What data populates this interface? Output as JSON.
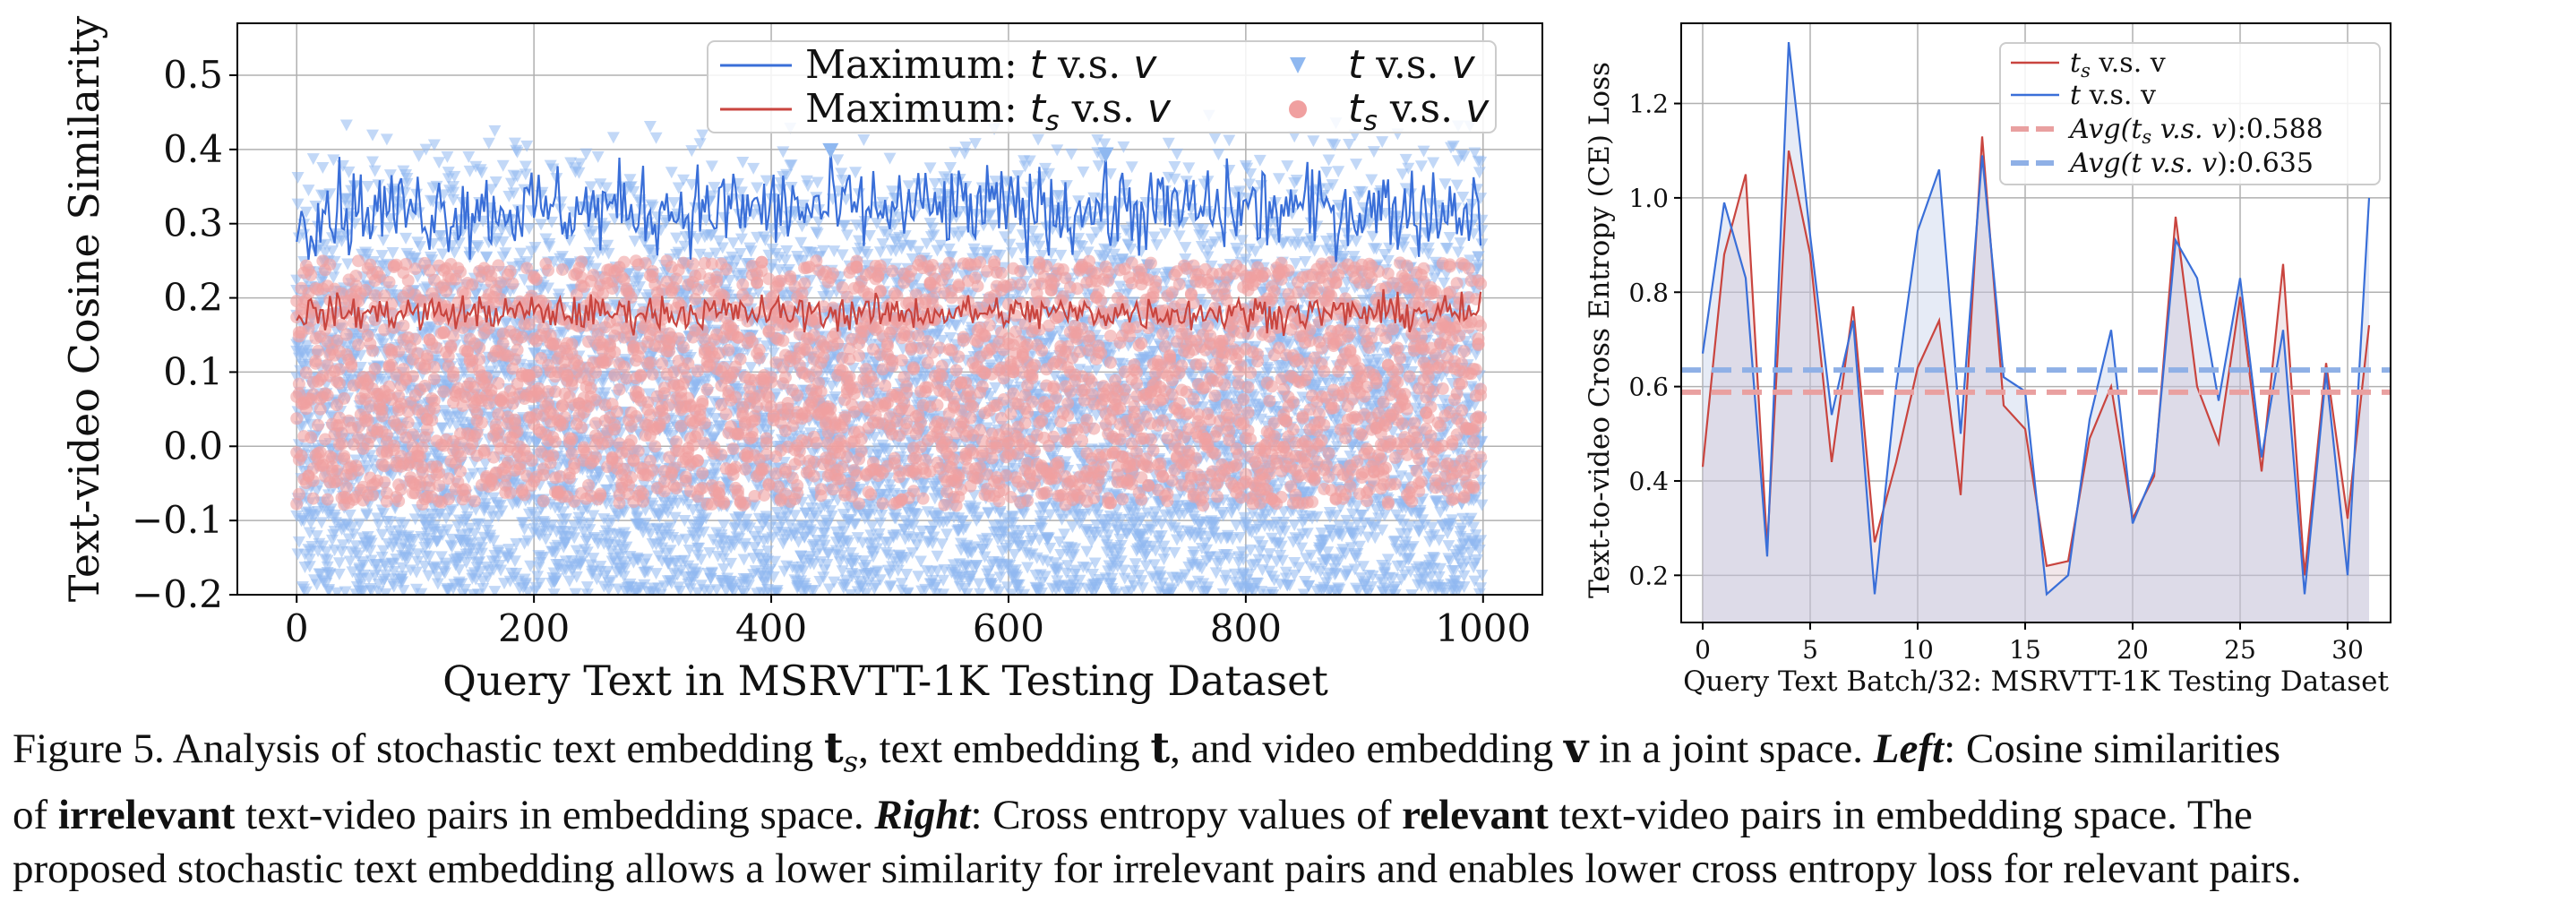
{
  "chart_data": [
    {
      "type": "scatter",
      "ylabel": "Text-video Cosine Similarity",
      "xlabel": "Query Text in MSRVTT-1K Testing Dataset",
      "xlim": [
        -50,
        1050
      ],
      "ylim": [
        -0.2,
        0.57
      ],
      "xticks": [
        "0",
        "200",
        "400",
        "600",
        "800",
        "1000"
      ],
      "xtick_values": [
        0,
        200,
        400,
        600,
        800,
        1000
      ],
      "yticks": [
        "0.5",
        "0.4",
        "0.3",
        "0.2",
        "0.1",
        "0.0",
        "−0.1",
        "−0.2"
      ],
      "ytick_values": [
        0.5,
        0.4,
        0.3,
        0.2,
        0.1,
        0.0,
        -0.1,
        -0.2
      ],
      "grid": true,
      "legend_position": "top-right",
      "legend": [
        {
          "prefix": "Maximum: ",
          "sym": "t",
          "sub": "",
          "suffix": " v.s. ",
          "sym2": "v",
          "kind": "line",
          "color": "#3a6fd8"
        },
        {
          "prefix": "Maximum: ",
          "sym": "t",
          "sub": "s",
          "suffix": " v.s. ",
          "sym2": "v",
          "kind": "line",
          "color": "#c9453f"
        },
        {
          "prefix": "",
          "sym": "t",
          "sub": "",
          "suffix": " v.s. ",
          "sym2": "v",
          "kind": "triangle",
          "color": "#8fb8f0"
        },
        {
          "prefix": "",
          "sym": "t",
          "sub": "s",
          "suffix": " v.s. ",
          "sym2": "v",
          "kind": "circle",
          "color": "#f0a0a0"
        }
      ],
      "series": [
        {
          "key": "max_t",
          "x_range": [
            0,
            1000
          ],
          "center": 0.32,
          "spread": 0.1,
          "color": "#3a6fd8"
        },
        {
          "key": "max_ts",
          "x_range": [
            0,
            1000
          ],
          "center": 0.18,
          "spread": 0.04,
          "color": "#c9453f"
        },
        {
          "key": "scatter_t",
          "x_range": [
            0,
            1000
          ],
          "y_range": [
            -0.2,
            0.45
          ],
          "color": "#8fb8f0"
        },
        {
          "key": "scatter_ts",
          "x_range": [
            0,
            1000
          ],
          "y_range": [
            -0.08,
            0.25
          ],
          "color": "#f0a0a0"
        }
      ]
    },
    {
      "type": "line",
      "ylabel": "Text-to-video Cross Entropy (CE) Loss",
      "xlabel": "Query Text Batch/32: MSRVTT-1K Testing Dataset",
      "xlim": [
        -1,
        32
      ],
      "ylim": [
        0.1,
        1.37
      ],
      "xticks": [
        "0",
        "5",
        "10",
        "15",
        "20",
        "25",
        "30"
      ],
      "xtick_values": [
        0,
        5,
        10,
        15,
        20,
        25,
        30
      ],
      "yticks": [
        "1.2",
        "1.0",
        "0.8",
        "0.6",
        "0.4",
        "0.2"
      ],
      "ytick_values": [
        1.2,
        1.0,
        0.8,
        0.6,
        0.4,
        0.2
      ],
      "grid": true,
      "legend_position": "top-right",
      "x": [
        0,
        1,
        2,
        3,
        4,
        5,
        6,
        7,
        8,
        9,
        10,
        11,
        12,
        13,
        14,
        15,
        16,
        17,
        18,
        19,
        20,
        21,
        22,
        23,
        24,
        25,
        26,
        27,
        28,
        29,
        30,
        31
      ],
      "series": [
        {
          "name_sym": "t",
          "name_sub": "s",
          "name_rest": " v.s. v",
          "color": "#c9453f",
          "values": [
            0.43,
            0.88,
            1.05,
            0.26,
            1.1,
            0.88,
            0.44,
            0.77,
            0.27,
            0.44,
            0.64,
            0.74,
            0.37,
            1.13,
            0.56,
            0.51,
            0.22,
            0.23,
            0.49,
            0.6,
            0.32,
            0.41,
            0.96,
            0.6,
            0.48,
            0.79,
            0.42,
            0.86,
            0.2,
            0.65,
            0.32,
            0.73
          ]
        },
        {
          "name_sym": "t",
          "name_sub": "",
          "name_rest": " v.s. v",
          "color": "#3a6fd8",
          "values": [
            0.67,
            0.99,
            0.83,
            0.24,
            1.33,
            0.92,
            0.54,
            0.74,
            0.16,
            0.6,
            0.93,
            1.06,
            0.5,
            1.09,
            0.62,
            0.59,
            0.16,
            0.2,
            0.53,
            0.72,
            0.31,
            0.42,
            0.91,
            0.83,
            0.57,
            0.83,
            0.45,
            0.72,
            0.16,
            0.63,
            0.2,
            1.0
          ]
        }
      ],
      "averages": [
        {
          "label_pre": "Avg(",
          "sym": "t",
          "sub": "s",
          "label_mid": " v.s.  v",
          "label_post": "):",
          "value_text": "0.588",
          "value": 0.588,
          "color": "#e9a0a0"
        },
        {
          "label_pre": "Avg(",
          "sym": "t",
          "sub": "",
          "label_mid": " v.s.  v",
          "label_post": "):",
          "value_text": "0.635",
          "value": 0.635,
          "color": "#8fb0e6"
        }
      ]
    }
  ],
  "caption": {
    "figure_label": "Figure 5.",
    "line1_a": " Analysis of stochastic text embedding ",
    "sym_ts": "t",
    "sym_ts_sub": "s",
    "line1_b": ", text embedding ",
    "sym_t": "t",
    "line1_c": ", and video embedding ",
    "sym_v": "v",
    "line1_d": " in a joint space. ",
    "left_label": "Left",
    "line1_e": ": Cosine similarities",
    "line2_a": "of ",
    "irrelevant": "irrelevant",
    "line2_b": " text-video pairs in embedding space. ",
    "right_label": "Right",
    "line2_c": ": Cross entropy values of ",
    "relevant": "relevant",
    "line2_d": " text-video pairs in embedding space. The",
    "line3": "proposed stochastic text embedding allows a lower similarity for irrelevant pairs and enables lower cross entropy loss for relevant pairs."
  }
}
